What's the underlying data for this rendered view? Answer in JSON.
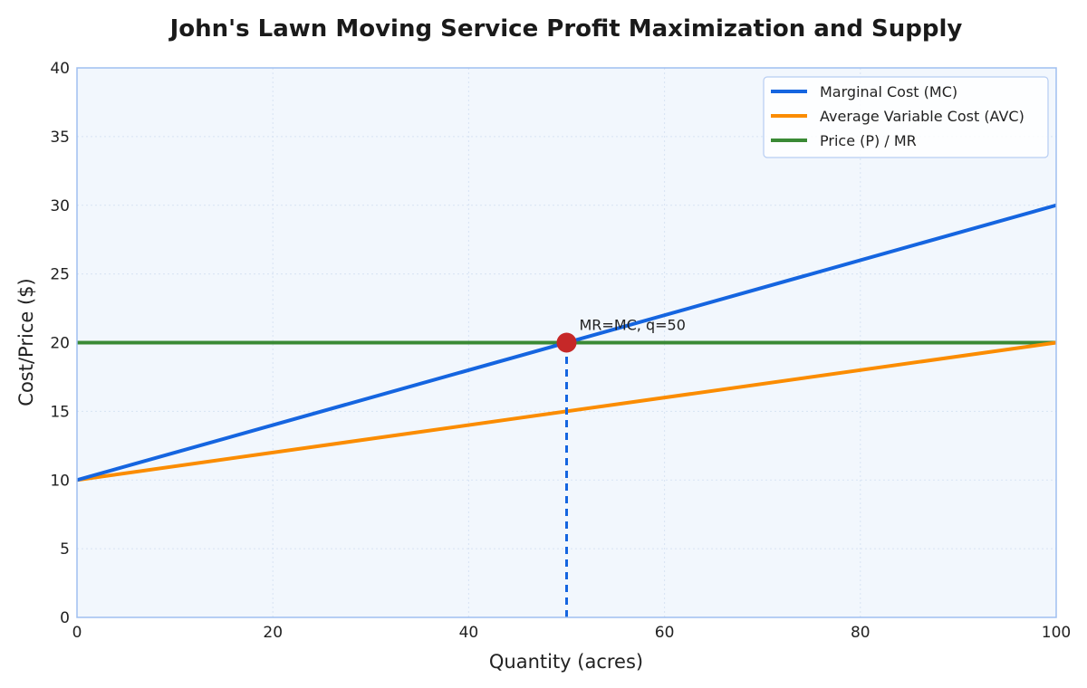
{
  "chart_data": {
    "type": "line",
    "title": "John's Lawn Moving Service Profit Maximization and Supply",
    "xlabel": "Quantity (acres)",
    "ylabel": "Cost/Price ($)",
    "xlim": [
      0,
      100
    ],
    "ylim": [
      0,
      40
    ],
    "xticks": [
      0,
      20,
      40,
      60,
      80,
      100
    ],
    "yticks": [
      0,
      5,
      10,
      15,
      20,
      25,
      30,
      35,
      40
    ],
    "grid": true,
    "legend_position": "top-right",
    "series": [
      {
        "name": "Marginal Cost (MC)",
        "color": "#1565e0",
        "x": [
          0,
          100
        ],
        "y": [
          10,
          30
        ],
        "style": "solid"
      },
      {
        "name": "Average Variable Cost (AVC)",
        "color": "#fb8c00",
        "x": [
          0,
          100
        ],
        "y": [
          10,
          20
        ],
        "style": "solid"
      },
      {
        "name": "Price (P) / MR",
        "color": "#3a8a35",
        "x": [
          0,
          100
        ],
        "y": [
          20,
          20
        ],
        "style": "solid"
      }
    ],
    "marker": {
      "x": 50,
      "y": 20,
      "color": "#c62828"
    },
    "vline": {
      "x": 50,
      "y_from": 0,
      "y_to": 20,
      "color": "#1565e0",
      "style": "dashed"
    },
    "annotation": {
      "text": "MR=MC, q=50",
      "x": 50,
      "y": 20
    },
    "colors": {
      "plot_bg": "#f2f7fd",
      "frame": "#9fbff0",
      "grid": "#d7e3f3"
    }
  }
}
